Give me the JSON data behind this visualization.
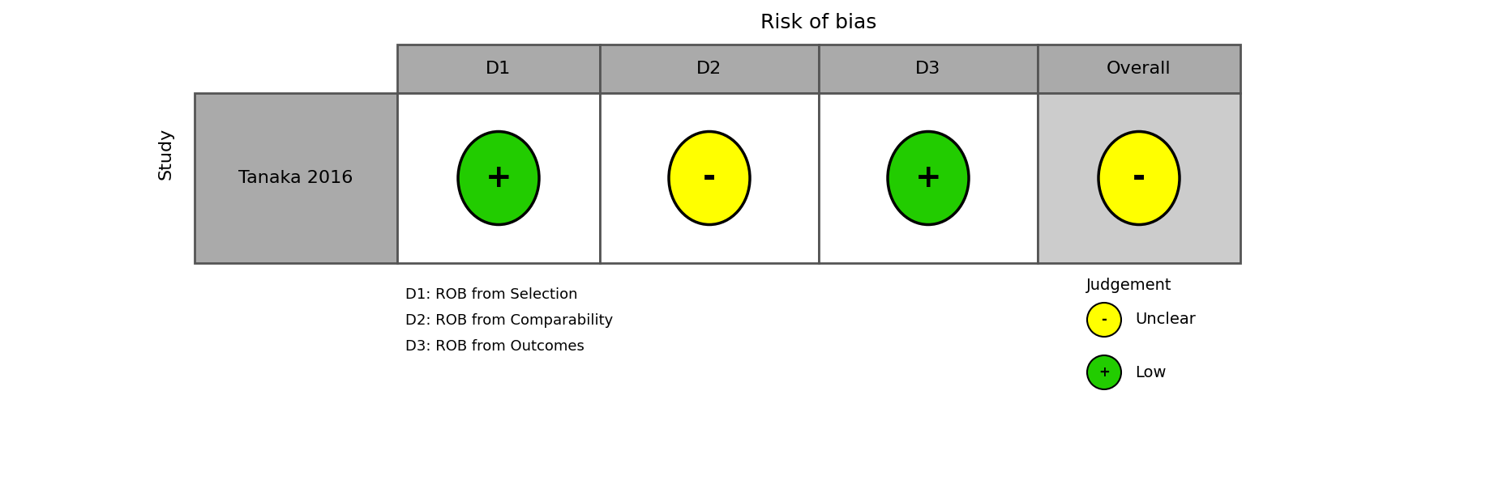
{
  "title": "Risk of bias",
  "study_label": "Study",
  "columns": [
    "D1",
    "D2",
    "D3",
    "Overall"
  ],
  "study_row": "Tanaka 2016",
  "symbols": [
    "+",
    "-",
    "+",
    "-"
  ],
  "colors": [
    "#22cc00",
    "#ffff00",
    "#22cc00",
    "#ffff00"
  ],
  "header_bg": "#aaaaaa",
  "study_col_bg": "#aaaaaa",
  "overall_col_bg": "#cccccc",
  "data_col_bg": "#ffffff",
  "border_color": "#555555",
  "title_fontsize": 18,
  "header_fontsize": 16,
  "cell_fontsize": 14,
  "study_fontsize": 16,
  "legend_title": "Judgement",
  "legend_items": [
    {
      "symbol": "-",
      "color": "#ffff00",
      "label": "Unclear"
    },
    {
      "symbol": "+",
      "color": "#22cc00",
      "label": "Low"
    }
  ],
  "footnotes": [
    "D1: ROB from Selection",
    "D2: ROB from Comparability",
    "D3: ROB from Outcomes"
  ],
  "fig_width": 18.54,
  "fig_height": 5.93,
  "fig_dpi": 100
}
